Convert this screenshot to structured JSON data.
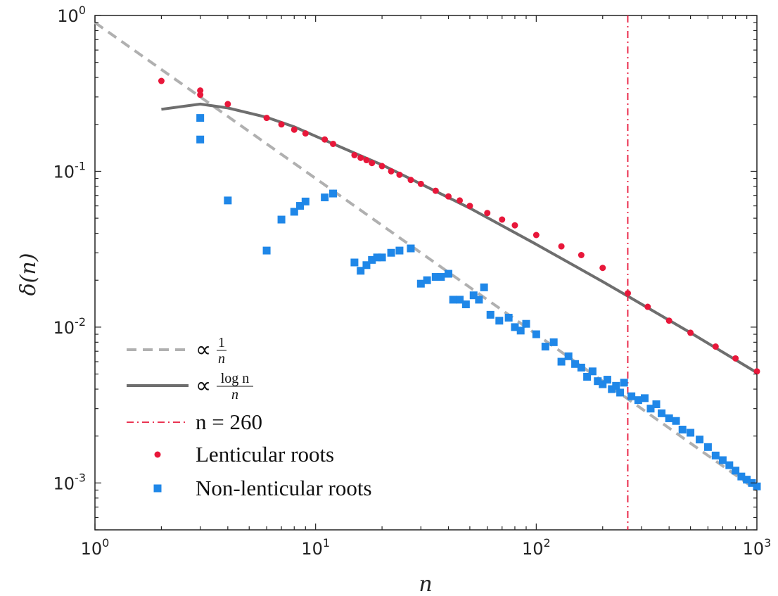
{
  "chart_data": {
    "type": "scatter",
    "xscale": "log",
    "yscale": "log",
    "xlim": [
      1,
      1000
    ],
    "ylim": [
      0.0005,
      1
    ],
    "xlabel": "n",
    "ylabel": "δ(n)",
    "grid": false,
    "legend_position": "bottom-left",
    "x_tick_labels": [
      {
        "value": 1,
        "base": "10",
        "exp": "0"
      },
      {
        "value": 10,
        "base": "10",
        "exp": "1"
      },
      {
        "value": 100,
        "base": "10",
        "exp": "2"
      },
      {
        "value": 1000,
        "base": "10",
        "exp": "3"
      }
    ],
    "y_tick_labels": [
      {
        "value": 0.001,
        "base": "10",
        "exp": "-3"
      },
      {
        "value": 0.01,
        "base": "10",
        "exp": "-2"
      },
      {
        "value": 0.1,
        "base": "10",
        "exp": "-1"
      },
      {
        "value": 1,
        "base": "10",
        "exp": "0"
      }
    ],
    "series": [
      {
        "name": "Lenticular roots",
        "kind": "points",
        "marker": "circle",
        "color": "#e8173a",
        "x": [
          2,
          3,
          3,
          4,
          6,
          7,
          8,
          9,
          11,
          12,
          15,
          16,
          17,
          18,
          20,
          22,
          24,
          27,
          30,
          35,
          40,
          45,
          50,
          60,
          70,
          80,
          100,
          130,
          160,
          200,
          260,
          320,
          400,
          500,
          650,
          800,
          1000
        ],
        "y": [
          0.38,
          0.33,
          0.31,
          0.27,
          0.22,
          0.2,
          0.185,
          0.175,
          0.16,
          0.15,
          0.127,
          0.122,
          0.118,
          0.113,
          0.108,
          0.1,
          0.095,
          0.088,
          0.083,
          0.075,
          0.069,
          0.065,
          0.06,
          0.054,
          0.049,
          0.045,
          0.039,
          0.033,
          0.029,
          0.024,
          0.0165,
          0.0135,
          0.011,
          0.0092,
          0.0075,
          0.0063,
          0.0052
        ]
      },
      {
        "name": "Non-lenticular roots",
        "kind": "points",
        "marker": "square",
        "color": "#1f87e8",
        "x": [
          3,
          3,
          4,
          6,
          7,
          8,
          8.5,
          9,
          11,
          12,
          15,
          16,
          17,
          18,
          19,
          20,
          22,
          24,
          27,
          30,
          32,
          35,
          37,
          40,
          42,
          45,
          48,
          52,
          55,
          58,
          62,
          68,
          75,
          80,
          85,
          90,
          100,
          110,
          120,
          130,
          140,
          150,
          160,
          170,
          180,
          190,
          200,
          210,
          220,
          230,
          240,
          250,
          270,
          290,
          310,
          330,
          350,
          370,
          400,
          430,
          460,
          500,
          550,
          600,
          650,
          700,
          750,
          800,
          850,
          900,
          950,
          1000
        ],
        "y": [
          0.22,
          0.16,
          0.065,
          0.031,
          0.049,
          0.055,
          0.06,
          0.064,
          0.068,
          0.072,
          0.026,
          0.023,
          0.025,
          0.027,
          0.028,
          0.028,
          0.03,
          0.031,
          0.032,
          0.019,
          0.02,
          0.021,
          0.021,
          0.022,
          0.015,
          0.015,
          0.014,
          0.016,
          0.015,
          0.018,
          0.012,
          0.011,
          0.0115,
          0.01,
          0.0095,
          0.0105,
          0.009,
          0.0075,
          0.008,
          0.006,
          0.0065,
          0.0058,
          0.0055,
          0.0048,
          0.0052,
          0.0045,
          0.0043,
          0.0046,
          0.004,
          0.0042,
          0.0038,
          0.0044,
          0.0036,
          0.0034,
          0.0035,
          0.003,
          0.0032,
          0.0028,
          0.0026,
          0.0025,
          0.0022,
          0.0021,
          0.0019,
          0.0017,
          0.0015,
          0.0014,
          0.0013,
          0.0012,
          0.0011,
          0.00105,
          0.001,
          0.00095
        ]
      },
      {
        "name": "∝ 1/n",
        "kind": "line",
        "style": "dashed",
        "color": "#b0b0b0",
        "x": [
          1,
          1000
        ],
        "y": [
          0.9,
          0.0009
        ]
      },
      {
        "name": "∝ log n / n",
        "kind": "line",
        "style": "solid",
        "color": "#6e6e6e",
        "x": [
          2,
          3,
          4,
          6,
          8,
          10,
          15,
          20,
          30,
          50,
          100,
          200,
          260,
          500,
          1000
        ],
        "y": [
          0.25,
          0.27,
          0.255,
          0.222,
          0.193,
          0.168,
          0.131,
          0.11,
          0.083,
          0.058,
          0.034,
          0.0196,
          0.0158,
          0.0092,
          0.0051
        ]
      },
      {
        "name": "n = 260",
        "kind": "vline",
        "style": "dashdot",
        "color": "#e8173a",
        "x": 260
      }
    ],
    "legend": [
      {
        "kind": "dashed",
        "color": "#b0b0b0",
        "prefix": "∝",
        "num": "1",
        "den": "n"
      },
      {
        "kind": "solid",
        "color": "#6e6e6e",
        "prefix": "∝",
        "num": "log n",
        "den": "n"
      },
      {
        "kind": "dashdot",
        "color": "#e8173a",
        "label": "n  =  260"
      },
      {
        "kind": "circle",
        "color": "#e8173a",
        "label": "Lenticular roots"
      },
      {
        "kind": "square",
        "color": "#1f87e8",
        "label": "Non-lenticular roots"
      }
    ]
  }
}
